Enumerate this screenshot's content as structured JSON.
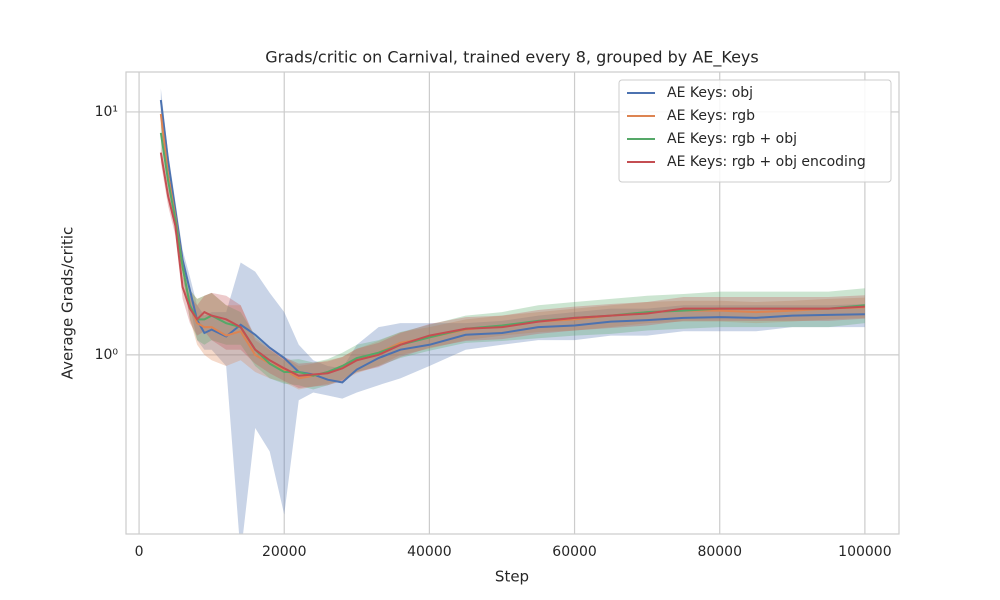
{
  "chart_data": {
    "type": "line",
    "title": "Grads/critic on Carnival, trained every 8, grouped by AE_Keys",
    "xlabel": "Step",
    "ylabel": "Average Grads/critic",
    "x": [
      3000,
      4000,
      5000,
      6000,
      7000,
      8000,
      9000,
      10000,
      12000,
      14000,
      16000,
      18000,
      20000,
      22000,
      24000,
      26000,
      28000,
      30000,
      33000,
      36000,
      40000,
      45000,
      50000,
      55000,
      60000,
      65000,
      70000,
      75000,
      80000,
      85000,
      90000,
      95000,
      100000
    ],
    "series": [
      {
        "name": "AE Keys: obj",
        "color": "#4c72b0",
        "values": [
          11.2,
          6.3,
          3.95,
          2.46,
          1.85,
          1.39,
          1.23,
          1.27,
          1.19,
          1.33,
          1.21,
          1.07,
          0.97,
          0.85,
          0.83,
          0.79,
          0.77,
          0.87,
          0.97,
          1.05,
          1.1,
          1.21,
          1.23,
          1.3,
          1.32,
          1.37,
          1.39,
          1.42,
          1.43,
          1.42,
          1.45,
          1.46,
          1.47
        ],
        "lower": [
          10,
          5.8,
          3.6,
          2.2,
          1.6,
          1.15,
          1.05,
          1.05,
          0.9,
          0.15,
          0.5,
          0.4,
          0.22,
          0.65,
          0.7,
          0.68,
          0.66,
          0.7,
          0.75,
          0.8,
          0.9,
          1.05,
          1.1,
          1.15,
          1.15,
          1.2,
          1.2,
          1.25,
          1.25,
          1.25,
          1.3,
          1.3,
          1.3
        ],
        "upper": [
          12.5,
          6.8,
          4.3,
          2.7,
          2.1,
          1.6,
          1.45,
          1.5,
          1.5,
          2.4,
          2.2,
          1.8,
          1.5,
          1.1,
          0.95,
          0.9,
          0.88,
          1.1,
          1.3,
          1.35,
          1.35,
          1.35,
          1.38,
          1.45,
          1.5,
          1.55,
          1.55,
          1.6,
          1.6,
          1.6,
          1.6,
          1.6,
          1.62
        ]
      },
      {
        "name": "AE Keys: rgb",
        "color": "#dd8452",
        "values": [
          9.8,
          5.5,
          3.7,
          2.3,
          1.6,
          1.35,
          1.3,
          1.3,
          1.2,
          1.25,
          1.0,
          0.92,
          0.87,
          0.8,
          0.82,
          0.85,
          0.88,
          0.95,
          1.02,
          1.12,
          1.18,
          1.27,
          1.32,
          1.37,
          1.4,
          1.45,
          1.5,
          1.52,
          1.52,
          1.5,
          1.52,
          1.55,
          1.57
        ],
        "lower": [
          8.8,
          5.0,
          3.4,
          2.1,
          1.4,
          1.1,
          1.0,
          0.95,
          0.9,
          0.95,
          0.85,
          0.8,
          0.77,
          0.72,
          0.74,
          0.76,
          0.78,
          0.84,
          0.9,
          1.0,
          1.06,
          1.15,
          1.2,
          1.24,
          1.26,
          1.3,
          1.35,
          1.37,
          1.37,
          1.35,
          1.37,
          1.4,
          1.42
        ],
        "upper": [
          10.8,
          6.0,
          4.0,
          2.5,
          1.85,
          1.7,
          1.75,
          1.8,
          1.6,
          1.6,
          1.15,
          1.05,
          0.98,
          0.9,
          0.92,
          0.95,
          0.98,
          1.06,
          1.14,
          1.24,
          1.3,
          1.4,
          1.45,
          1.5,
          1.55,
          1.6,
          1.65,
          1.67,
          1.67,
          1.65,
          1.67,
          1.7,
          1.72
        ]
      },
      {
        "name": "AE Keys: rgb + obj",
        "color": "#55a868",
        "values": [
          8.2,
          5.2,
          3.6,
          2.3,
          1.6,
          1.4,
          1.4,
          1.45,
          1.35,
          1.3,
          1.05,
          0.92,
          0.85,
          0.85,
          0.82,
          0.85,
          0.9,
          0.97,
          1.02,
          1.1,
          1.18,
          1.28,
          1.32,
          1.38,
          1.42,
          1.45,
          1.5,
          1.52,
          1.55,
          1.55,
          1.55,
          1.55,
          1.6
        ],
        "lower": [
          7.4,
          4.7,
          3.3,
          2.1,
          1.4,
          1.15,
          1.1,
          1.15,
          1.1,
          1.1,
          0.9,
          0.8,
          0.76,
          0.75,
          0.72,
          0.75,
          0.79,
          0.85,
          0.9,
          0.97,
          1.04,
          1.12,
          1.14,
          1.17,
          1.2,
          1.22,
          1.26,
          1.28,
          1.3,
          1.3,
          1.3,
          1.3,
          1.35
        ],
        "upper": [
          9.0,
          5.7,
          3.9,
          2.5,
          1.85,
          1.7,
          1.75,
          1.8,
          1.6,
          1.5,
          1.2,
          1.05,
          0.95,
          0.96,
          0.93,
          0.96,
          1.02,
          1.1,
          1.15,
          1.24,
          1.33,
          1.45,
          1.5,
          1.6,
          1.65,
          1.7,
          1.75,
          1.78,
          1.82,
          1.82,
          1.82,
          1.82,
          1.88
        ]
      },
      {
        "name": "AE Keys: rgb + obj encoding",
        "color": "#c44e52",
        "values": [
          6.8,
          4.5,
          3.4,
          1.9,
          1.55,
          1.4,
          1.5,
          1.45,
          1.4,
          1.3,
          1.05,
          0.95,
          0.88,
          0.82,
          0.83,
          0.84,
          0.88,
          0.95,
          1.0,
          1.1,
          1.2,
          1.28,
          1.3,
          1.37,
          1.42,
          1.45,
          1.48,
          1.55,
          1.55,
          1.55,
          1.55,
          1.55,
          1.58
        ],
        "lower": [
          6.2,
          4.1,
          3.1,
          1.7,
          1.35,
          1.2,
          1.25,
          1.15,
          1.05,
          1.05,
          0.92,
          0.84,
          0.78,
          0.73,
          0.74,
          0.75,
          0.78,
          0.85,
          0.89,
          0.98,
          1.07,
          1.14,
          1.16,
          1.22,
          1.26,
          1.29,
          1.32,
          1.38,
          1.38,
          1.38,
          1.38,
          1.38,
          1.41
        ],
        "upper": [
          7.4,
          4.9,
          3.7,
          2.1,
          1.75,
          1.6,
          1.75,
          1.8,
          1.75,
          1.6,
          1.18,
          1.06,
          0.98,
          0.92,
          0.93,
          0.94,
          0.98,
          1.06,
          1.12,
          1.23,
          1.34,
          1.43,
          1.45,
          1.53,
          1.58,
          1.62,
          1.65,
          1.73,
          1.73,
          1.73,
          1.73,
          1.73,
          1.76
        ]
      }
    ],
    "xlim": [
      -1800,
      104700
    ],
    "xticks": [
      0,
      20000,
      40000,
      60000,
      80000,
      100000
    ],
    "ylim": [
      0.183,
      14.6
    ],
    "yticks": [
      {
        "value": 1,
        "label": "10⁰"
      },
      {
        "value": 10,
        "label": "10¹"
      }
    ],
    "ylog": true,
    "grid": true,
    "legend": "upper right"
  }
}
